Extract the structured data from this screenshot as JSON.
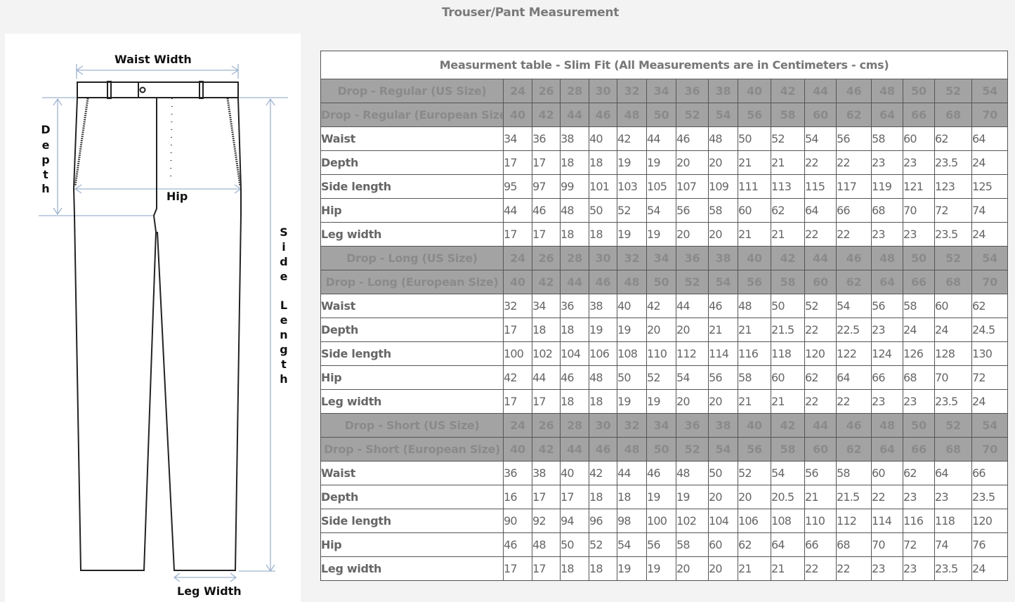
{
  "page_title": "Trouser/Pant Measurement",
  "diagram": {
    "labels": {
      "waist_width": "Waist Width",
      "depth": "Depth",
      "hip": "Hip",
      "side_length": "Side Length",
      "leg_width": "Leg Width"
    },
    "line_color": "#9fb4d0"
  },
  "table": {
    "title": "Measurment table - Slim Fit (All Measurements are in Centimeters - cms)",
    "sections": [
      {
        "us_label": "Drop - Regular (US Size)",
        "us_sizes": [
          "24",
          "26",
          "28",
          "30",
          "32",
          "34",
          "36",
          "38",
          "40",
          "42",
          "44",
          "46",
          "48",
          "50",
          "52",
          "54"
        ],
        "eu_label": "Drop - Regular (European Size)",
        "eu_sizes": [
          "40",
          "42",
          "44",
          "46",
          "48",
          "50",
          "52",
          "54",
          "56",
          "58",
          "60",
          "62",
          "64",
          "66",
          "68",
          "70"
        ],
        "rows": [
          {
            "label": "Waist",
            "values": [
              "34",
              "36",
              "38",
              "40",
              "42",
              "44",
              "46",
              "48",
              "50",
              "52",
              "54",
              "56",
              "58",
              "60",
              "62",
              "64"
            ]
          },
          {
            "label": "Depth",
            "values": [
              "17",
              "17",
              "18",
              "18",
              "19",
              "19",
              "20",
              "20",
              "21",
              "21",
              "22",
              "22",
              "23",
              "23",
              "23.5",
              "24"
            ]
          },
          {
            "label": "Side length",
            "values": [
              "95",
              "97",
              "99",
              "101",
              "103",
              "105",
              "107",
              "109",
              "111",
              "113",
              "115",
              "117",
              "119",
              "121",
              "123",
              "125"
            ]
          },
          {
            "label": "Hip",
            "values": [
              "44",
              "46",
              "48",
              "50",
              "52",
              "54",
              "56",
              "58",
              "60",
              "62",
              "64",
              "66",
              "68",
              "70",
              "72",
              "74"
            ]
          },
          {
            "label": "Leg width",
            "values": [
              "17",
              "17",
              "18",
              "18",
              "19",
              "19",
              "20",
              "20",
              "21",
              "21",
              "22",
              "22",
              "23",
              "23",
              "23.5",
              "24"
            ]
          }
        ]
      },
      {
        "us_label": "Drop - Long (US Size)",
        "us_sizes": [
          "24",
          "26",
          "28",
          "30",
          "32",
          "34",
          "36",
          "38",
          "40",
          "42",
          "44",
          "46",
          "48",
          "50",
          "52",
          "54"
        ],
        "eu_label": "Drop - Long (European Size)",
        "eu_sizes": [
          "40",
          "42",
          "44",
          "46",
          "48",
          "50",
          "52",
          "54",
          "56",
          "58",
          "60",
          "62",
          "64",
          "66",
          "68",
          "70"
        ],
        "rows": [
          {
            "label": "Waist",
            "values": [
              "32",
              "34",
              "36",
              "38",
              "40",
              "42",
              "44",
              "46",
              "48",
              "50",
              "52",
              "54",
              "56",
              "58",
              "60",
              "62"
            ]
          },
          {
            "label": "Depth",
            "values": [
              "17",
              "18",
              "18",
              "19",
              "19",
              "20",
              "20",
              "21",
              "21",
              "21.5",
              "22",
              "22.5",
              "23",
              "24",
              "24",
              "24.5"
            ]
          },
          {
            "label": "Side length",
            "values": [
              "100",
              "102",
              "104",
              "106",
              "108",
              "110",
              "112",
              "114",
              "116",
              "118",
              "120",
              "122",
              "124",
              "126",
              "128",
              "130"
            ]
          },
          {
            "label": "Hip",
            "values": [
              "42",
              "44",
              "46",
              "48",
              "50",
              "52",
              "54",
              "56",
              "58",
              "60",
              "62",
              "64",
              "66",
              "68",
              "70",
              "72"
            ]
          },
          {
            "label": "Leg width",
            "values": [
              "17",
              "17",
              "18",
              "18",
              "19",
              "19",
              "20",
              "20",
              "21",
              "21",
              "22",
              "22",
              "23",
              "23",
              "23.5",
              "24"
            ]
          }
        ]
      },
      {
        "us_label": "Drop - Short (US Size)",
        "us_sizes": [
          "24",
          "26",
          "28",
          "30",
          "32",
          "34",
          "36",
          "38",
          "40",
          "42",
          "44",
          "46",
          "48",
          "50",
          "52",
          "54"
        ],
        "eu_label": "Drop - Short (European Size)",
        "eu_sizes": [
          "40",
          "42",
          "44",
          "46",
          "48",
          "50",
          "52",
          "54",
          "56",
          "58",
          "60",
          "62",
          "64",
          "66",
          "68",
          "70"
        ],
        "rows": [
          {
            "label": "Waist",
            "values": [
              "36",
              "38",
              "40",
              "42",
              "44",
              "46",
              "48",
              "50",
              "52",
              "54",
              "56",
              "58",
              "60",
              "62",
              "64",
              "66"
            ]
          },
          {
            "label": "Depth",
            "values": [
              "16",
              "17",
              "17",
              "18",
              "18",
              "19",
              "19",
              "20",
              "20",
              "20.5",
              "21",
              "21.5",
              "22",
              "23",
              "23",
              "23.5"
            ]
          },
          {
            "label": "Side length",
            "values": [
              "90",
              "92",
              "94",
              "96",
              "98",
              "100",
              "102",
              "104",
              "106",
              "108",
              "110",
              "112",
              "114",
              "116",
              "118",
              "120"
            ]
          },
          {
            "label": "Hip",
            "values": [
              "46",
              "48",
              "50",
              "52",
              "54",
              "56",
              "58",
              "60",
              "62",
              "64",
              "66",
              "68",
              "70",
              "72",
              "74",
              "76"
            ]
          },
          {
            "label": "Leg width",
            "values": [
              "17",
              "17",
              "18",
              "18",
              "19",
              "19",
              "20",
              "20",
              "21",
              "21",
              "22",
              "22",
              "23",
              "23",
              "23.5",
              "24"
            ]
          }
        ]
      }
    ]
  }
}
